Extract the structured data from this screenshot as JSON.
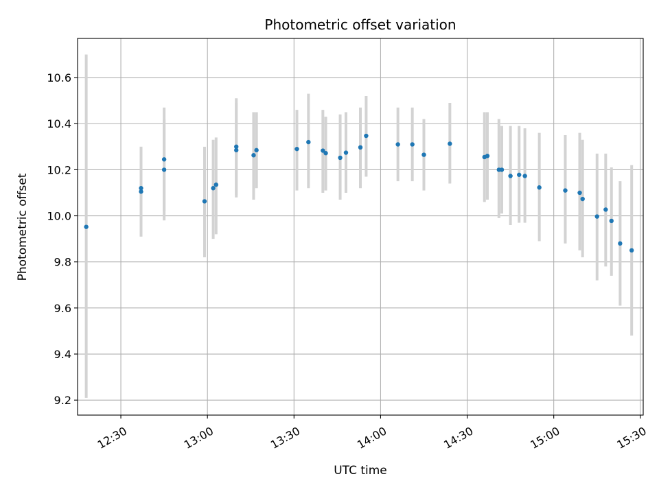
{
  "chart_data": {
    "type": "scatter",
    "title": "Photometric offset variation",
    "xlabel": "UTC time",
    "ylabel": "Photometric offset",
    "grid": true,
    "legend": "none",
    "xlim": [
      "12:15",
      "15:31"
    ],
    "ylim": [
      9.135,
      10.77
    ],
    "x_ticks": [
      "12:30",
      "13:00",
      "13:30",
      "14:00",
      "14:30",
      "15:00",
      "15:30"
    ],
    "y_ticks": [
      9.2,
      9.4,
      9.6,
      9.8,
      10.0,
      10.2,
      10.4,
      10.6
    ],
    "colors": {
      "point": "#1f77b4",
      "errorbar": "#d3d3d3",
      "grid": "#b0b0b0"
    },
    "points": [
      {
        "x": "12:18",
        "y": 9.952,
        "yerr_low": 9.21,
        "yerr_high": 10.7
      },
      {
        "x": "12:37",
        "y": 10.12,
        "yerr_low": 9.91,
        "yerr_high": 10.3
      },
      {
        "x": "12:37",
        "y": 10.105,
        "yerr_low": 9.91,
        "yerr_high": 10.3
      },
      {
        "x": "12:45",
        "y": 10.245,
        "yerr_low": 10.02,
        "yerr_high": 10.47
      },
      {
        "x": "12:45",
        "y": 10.2,
        "yerr_low": 9.98,
        "yerr_high": 10.42
      },
      {
        "x": "12:59",
        "y": 10.063,
        "yerr_low": 9.82,
        "yerr_high": 10.3
      },
      {
        "x": "13:02",
        "y": 10.12,
        "yerr_low": 9.9,
        "yerr_high": 10.33
      },
      {
        "x": "13:03",
        "y": 10.135,
        "yerr_low": 9.92,
        "yerr_high": 10.34
      },
      {
        "x": "13:10",
        "y": 10.3,
        "yerr_low": 10.09,
        "yerr_high": 10.51
      },
      {
        "x": "13:10",
        "y": 10.285,
        "yerr_low": 10.08,
        "yerr_high": 10.49
      },
      {
        "x": "13:16",
        "y": 10.263,
        "yerr_low": 10.07,
        "yerr_high": 10.45
      },
      {
        "x": "13:17",
        "y": 10.285,
        "yerr_low": 10.12,
        "yerr_high": 10.45
      },
      {
        "x": "13:31",
        "y": 10.29,
        "yerr_low": 10.11,
        "yerr_high": 10.46
      },
      {
        "x": "13:35",
        "y": 10.32,
        "yerr_low": 10.12,
        "yerr_high": 10.53
      },
      {
        "x": "13:40",
        "y": 10.283,
        "yerr_low": 10.1,
        "yerr_high": 10.46
      },
      {
        "x": "13:41",
        "y": 10.272,
        "yerr_low": 10.11,
        "yerr_high": 10.43
      },
      {
        "x": "13:46",
        "y": 10.252,
        "yerr_low": 10.07,
        "yerr_high": 10.44
      },
      {
        "x": "13:48",
        "y": 10.274,
        "yerr_low": 10.1,
        "yerr_high": 10.45
      },
      {
        "x": "13:53",
        "y": 10.297,
        "yerr_low": 10.12,
        "yerr_high": 10.47
      },
      {
        "x": "13:55",
        "y": 10.347,
        "yerr_low": 10.17,
        "yerr_high": 10.52
      },
      {
        "x": "14:06",
        "y": 10.31,
        "yerr_low": 10.15,
        "yerr_high": 10.47
      },
      {
        "x": "14:11",
        "y": 10.31,
        "yerr_low": 10.15,
        "yerr_high": 10.47
      },
      {
        "x": "14:15",
        "y": 10.265,
        "yerr_low": 10.11,
        "yerr_high": 10.42
      },
      {
        "x": "14:24",
        "y": 10.313,
        "yerr_low": 10.14,
        "yerr_high": 10.49
      },
      {
        "x": "14:36",
        "y": 10.255,
        "yerr_low": 10.06,
        "yerr_high": 10.45
      },
      {
        "x": "14:37",
        "y": 10.26,
        "yerr_low": 10.07,
        "yerr_high": 10.45
      },
      {
        "x": "14:41",
        "y": 10.2,
        "yerr_low": 9.99,
        "yerr_high": 10.42
      },
      {
        "x": "14:42",
        "y": 10.2,
        "yerr_low": 10.01,
        "yerr_high": 10.39
      },
      {
        "x": "14:45",
        "y": 10.173,
        "yerr_low": 9.96,
        "yerr_high": 10.39
      },
      {
        "x": "14:48",
        "y": 10.178,
        "yerr_low": 9.97,
        "yerr_high": 10.39
      },
      {
        "x": "14:50",
        "y": 10.173,
        "yerr_low": 9.97,
        "yerr_high": 10.38
      },
      {
        "x": "14:55",
        "y": 10.123,
        "yerr_low": 9.89,
        "yerr_high": 10.36
      },
      {
        "x": "15:04",
        "y": 10.11,
        "yerr_low": 9.88,
        "yerr_high": 10.35
      },
      {
        "x": "15:09",
        "y": 10.1,
        "yerr_low": 9.85,
        "yerr_high": 10.36
      },
      {
        "x": "15:10",
        "y": 10.073,
        "yerr_low": 9.82,
        "yerr_high": 10.33
      },
      {
        "x": "15:15",
        "y": 9.997,
        "yerr_low": 9.72,
        "yerr_high": 10.27
      },
      {
        "x": "15:18",
        "y": 10.027,
        "yerr_low": 9.78,
        "yerr_high": 10.27
      },
      {
        "x": "15:20",
        "y": 9.978,
        "yerr_low": 9.74,
        "yerr_high": 10.21
      },
      {
        "x": "15:23",
        "y": 9.88,
        "yerr_low": 9.61,
        "yerr_high": 10.15
      },
      {
        "x": "15:27",
        "y": 9.85,
        "yerr_low": 9.48,
        "yerr_high": 10.22
      }
    ]
  }
}
